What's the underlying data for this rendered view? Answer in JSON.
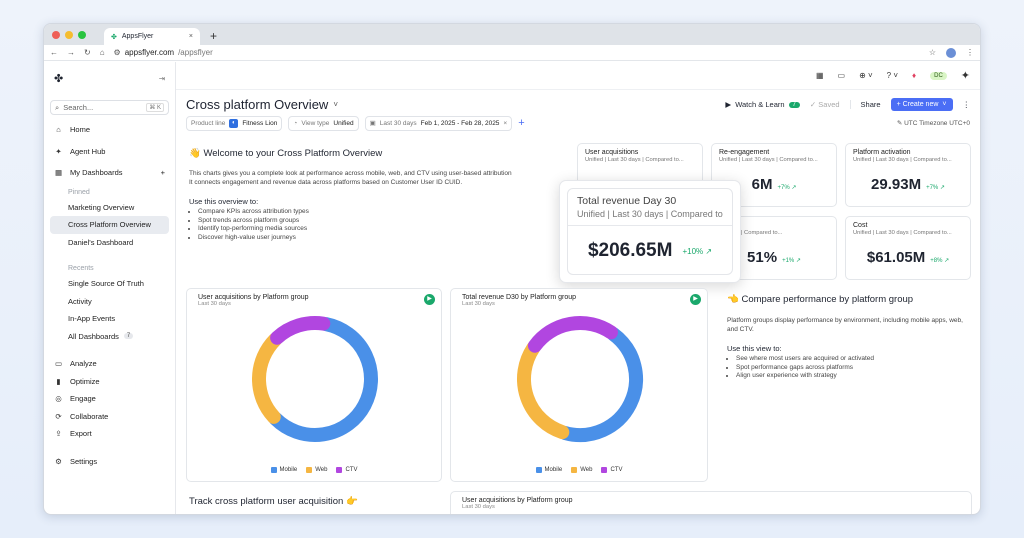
{
  "browser": {
    "tab_title": "AppsFlyer",
    "tab_close": "×",
    "new_tab": "+",
    "url_host": "appsflyer.com",
    "url_path": "/appsflyer"
  },
  "sidebar": {
    "search_placeholder": "Search...",
    "search_shortcut": "⌘ K",
    "items_top": [
      {
        "label": "Home",
        "icon": "home-icon"
      },
      {
        "label": "Agent Hub",
        "icon": "sparkle-icon"
      },
      {
        "label": "My Dashboards",
        "icon": "grid-icon"
      }
    ],
    "pinned_label": "Pinned",
    "pinned": [
      "Marketing Overview",
      "Cross Platform Overview",
      "Daniel's Dashboard"
    ],
    "recents_label": "Recents",
    "recents": [
      "Single Source Of Truth",
      "Activity",
      "In-App Events"
    ],
    "all_dashboards": "All Dashboards",
    "all_dashboards_count": "7",
    "items_bottom": [
      {
        "label": "Analyze",
        "icon": "chat-icon"
      },
      {
        "label": "Optimize",
        "icon": "bar-chart-icon"
      },
      {
        "label": "Engage",
        "icon": "target-icon"
      },
      {
        "label": "Collaborate",
        "icon": "sync-icon"
      },
      {
        "label": "Export",
        "icon": "upload-icon"
      },
      {
        "label": "Settings",
        "icon": "gear-icon"
      }
    ]
  },
  "topbar": {
    "avatar": "DC"
  },
  "header": {
    "title": "Cross platform Overview",
    "watch_learn": "Watch & Learn",
    "watch_count": "7",
    "saved": "Saved",
    "share": "Share",
    "create_new": "+ Create new"
  },
  "filters": {
    "product_line_label": "Product line",
    "product_line_value": "Fitness Lion",
    "view_type_label": "View type",
    "view_type_value": "Unified",
    "date_label": "Last 30 days",
    "date_value": "Feb 1, 2025 - Feb 28, 2025",
    "timezone": "UTC Timezone UTC+0"
  },
  "welcome": {
    "title": "👋 Welcome to your Cross Platform Overview",
    "line1": "This charts gives you a complete look at performance across mobile, web, and CTV using user-based attribution",
    "line2": "It connects engagement and revenue data across platforms based on Customer User ID CUID.",
    "use_title": "Use this overview to:",
    "bullets": [
      "Compare KPIs across attribution types",
      "Spot trends across platform groups",
      "Identify top-performing media sources",
      "Discover high-value user journeys"
    ]
  },
  "kpis": {
    "ua": {
      "title": "User acquisitions",
      "sub": "Unified | Last 30 days | Compared to..."
    },
    "re": {
      "title": "Re-engagement",
      "sub": "Unified | Last 30 days | Compared to...",
      "value": "6M",
      "delta": "+7% ↗"
    },
    "pa": {
      "title": "Platform activation",
      "sub": "Unified | Last 30 days | Compared to...",
      "value": "29.93M",
      "delta": "+7% ↗"
    },
    "roi": {
      "title": "D",
      "sub": "30 days | Compared to...",
      "value": "51%",
      "delta": "+1% ↗"
    },
    "cost": {
      "title": "Cost",
      "sub": "Unified | Last 30 days | Compared to...",
      "value": "$61.05M",
      "delta": "+8% ↗"
    }
  },
  "popover": {
    "title": "Total revenue Day 30",
    "sub": "Unified | Last 30 days | Compared to...",
    "value": "$206.65M",
    "delta": "+10% ↗"
  },
  "chart1": {
    "title": "User acquisitions by Platform group",
    "sub": "Last 30 days"
  },
  "chart2": {
    "title": "Total revenue D30 by Platform group",
    "sub": "Last 30 days"
  },
  "chart3": {
    "title": "User acquisitions by Platform group",
    "sub": "Last 30 days"
  },
  "chart_data": [
    {
      "type": "pie",
      "title": "User acquisitions by Platform group",
      "categories": [
        "Mobile",
        "Web",
        "CTV"
      ],
      "values": [
        60,
        25,
        15
      ],
      "colors": [
        "#4a90e8",
        "#f5b642",
        "#b146e0"
      ],
      "donut": true
    },
    {
      "type": "pie",
      "title": "Total revenue D30 by Platform group",
      "categories": [
        "Mobile",
        "Web",
        "CTV"
      ],
      "values": [
        45,
        30,
        25
      ],
      "colors": [
        "#4a90e8",
        "#f5b642",
        "#b146e0"
      ],
      "donut": true
    }
  ],
  "compare": {
    "title": "👈 Compare performance by platform group",
    "desc": "Platform groups display performance by environment, including mobile apps, web, and CTV.",
    "use_title": "Use this view to:",
    "bullets": [
      "See where most users are acquired or activated",
      "Spot performance gaps across platforms",
      "Align user experience with strategy"
    ]
  },
  "track": {
    "title": "Track cross platform user acquisition 👉"
  }
}
